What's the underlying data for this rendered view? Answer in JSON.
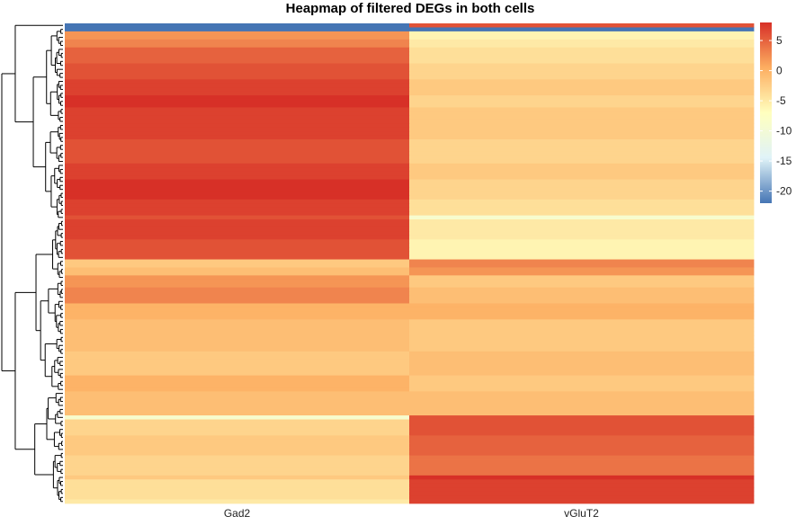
{
  "chart_data": {
    "type": "heatmap",
    "title": "Heapmap of filtered DEGs in both cells",
    "columns": [
      "Gad2",
      "vGluT2"
    ],
    "dendrogram": "rows, hierarchical clustering, left side",
    "legend": {
      "position": "right",
      "ticks": [
        5,
        0,
        -5,
        -10,
        -15,
        -20
      ],
      "range": [
        -22,
        8
      ],
      "colors": [
        "#4575b4",
        "#e0f3f8",
        "#ffffbf",
        "#fdae61",
        "#d73027"
      ]
    },
    "row_blocks": [
      {
        "rows": 1,
        "values": [
          -22,
          6
        ]
      },
      {
        "rows": 1,
        "values": [
          -22,
          -22
        ]
      },
      {
        "rows": 2,
        "values": [
          2,
          -6
        ]
      },
      {
        "rows": 2,
        "values": [
          3,
          -5
        ]
      },
      {
        "rows": 4,
        "values": [
          5,
          -4
        ]
      },
      {
        "rows": 4,
        "values": [
          6,
          -3
        ]
      },
      {
        "rows": 4,
        "values": [
          7,
          -2
        ]
      },
      {
        "rows": 3,
        "values": [
          8,
          -3
        ]
      },
      {
        "rows": 8,
        "values": [
          7,
          -2
        ]
      },
      {
        "rows": 6,
        "values": [
          6,
          -3
        ]
      },
      {
        "rows": 4,
        "values": [
          7,
          -2
        ]
      },
      {
        "rows": 5,
        "values": [
          8,
          -3
        ]
      },
      {
        "rows": 4,
        "values": [
          7,
          -4
        ]
      },
      {
        "rows": 1,
        "values": [
          6,
          -9
        ]
      },
      {
        "rows": 5,
        "values": [
          7,
          -5
        ]
      },
      {
        "rows": 5,
        "values": [
          6,
          -6
        ]
      },
      {
        "rows": 2,
        "values": [
          -2,
          3
        ]
      },
      {
        "rows": 2,
        "values": [
          -1,
          2
        ]
      },
      {
        "rows": 3,
        "values": [
          2,
          -2
        ]
      },
      {
        "rows": 4,
        "values": [
          3,
          -1
        ]
      },
      {
        "rows": 4,
        "values": [
          0,
          0
        ]
      },
      {
        "rows": 8,
        "values": [
          -1,
          -2
        ]
      },
      {
        "rows": 6,
        "values": [
          -2,
          -1
        ]
      },
      {
        "rows": 4,
        "values": [
          0,
          -2
        ]
      },
      {
        "rows": 6,
        "values": [
          -1,
          -1
        ]
      },
      {
        "rows": 1,
        "values": [
          -9,
          6
        ]
      },
      {
        "rows": 4,
        "values": [
          -3,
          6
        ]
      },
      {
        "rows": 5,
        "values": [
          -2,
          5
        ]
      },
      {
        "rows": 5,
        "values": [
          -3,
          4
        ]
      },
      {
        "rows": 1,
        "values": [
          -2,
          8
        ]
      },
      {
        "rows": 5,
        "values": [
          -4,
          7
        ]
      },
      {
        "rows": 1,
        "values": [
          -5,
          7
        ]
      }
    ]
  }
}
